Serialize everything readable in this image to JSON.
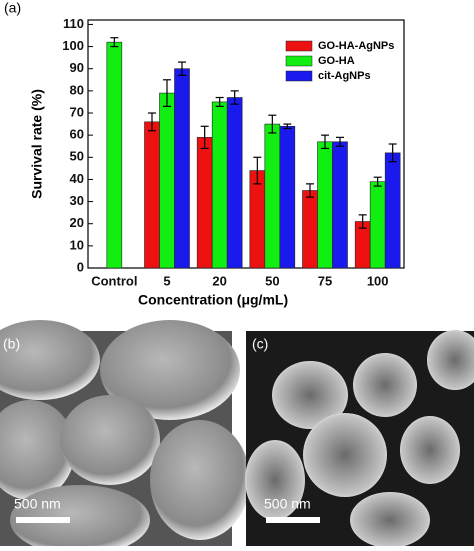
{
  "chart_data": {
    "type": "bar",
    "x_label": "Concentration (μg/mL)",
    "y_label": "Survival rate (%)",
    "categories": [
      "Control",
      "5",
      "20",
      "50",
      "75",
      "100"
    ],
    "series": [
      {
        "name": "GO-HA-AgNPs",
        "color": "#ee1111",
        "values": [
          null,
          66,
          59,
          44,
          35,
          21
        ],
        "errors": [
          null,
          4,
          5,
          6,
          3,
          3
        ]
      },
      {
        "name": "GO-HA",
        "color": "#11ee11",
        "values": [
          102,
          79,
          75,
          65,
          57,
          39
        ],
        "errors": [
          2,
          6,
          2,
          4,
          3,
          2
        ]
      },
      {
        "name": "cit-AgNPs",
        "color": "#1a1aee",
        "values": [
          null,
          90,
          77,
          64,
          57,
          52
        ],
        "errors": [
          null,
          3,
          3,
          1,
          2,
          4
        ]
      }
    ],
    "ylim": [
      0,
      112
    ],
    "yticks": [
      0,
      10,
      20,
      30,
      40,
      50,
      60,
      70,
      80,
      90,
      100,
      110
    ],
    "legend": "upper right"
  },
  "panels": [
    {
      "label": "(a)"
    },
    {
      "label": "(b)",
      "scale_bar": "500 nm"
    },
    {
      "label": "(c)",
      "scale_bar": "500 nm"
    }
  ]
}
